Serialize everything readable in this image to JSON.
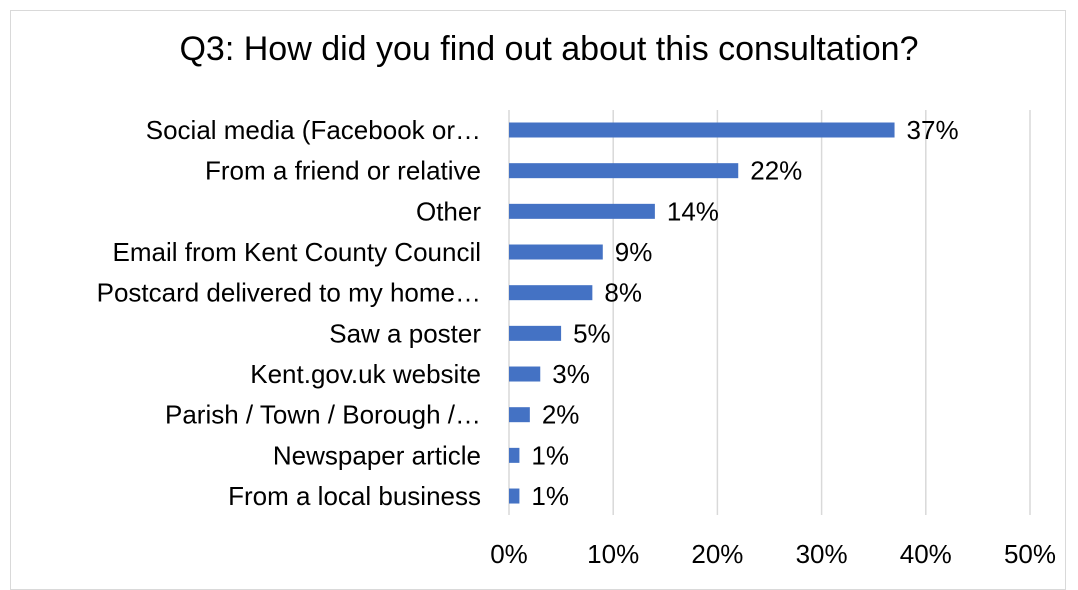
{
  "chart_data": {
    "type": "bar",
    "orientation": "horizontal",
    "title": "Q3: How did you find out about this consultation?",
    "categories": [
      "Social media (Facebook or…",
      "From a friend or relative",
      "Other",
      "Email from Kent County Council",
      "Postcard delivered to my home…",
      "Saw a poster",
      "Kent.gov.uk website",
      "Parish / Town / Borough /…",
      "Newspaper article",
      "From a local business"
    ],
    "values": [
      37,
      22,
      14,
      9,
      8,
      5,
      3,
      2,
      1,
      1
    ],
    "data_labels": [
      "37%",
      "22%",
      "14%",
      "9%",
      "8%",
      "5%",
      "3%",
      "2%",
      "1%",
      "1%"
    ],
    "xlim": [
      0,
      50
    ],
    "xticks": [
      0,
      10,
      20,
      30,
      40,
      50
    ],
    "xtick_labels": [
      "0%",
      "10%",
      "20%",
      "30%",
      "40%",
      "50%"
    ],
    "grid": "vertical",
    "legend": "none",
    "bar_color": "#4472c4",
    "grid_color": "#d9d9d9"
  }
}
